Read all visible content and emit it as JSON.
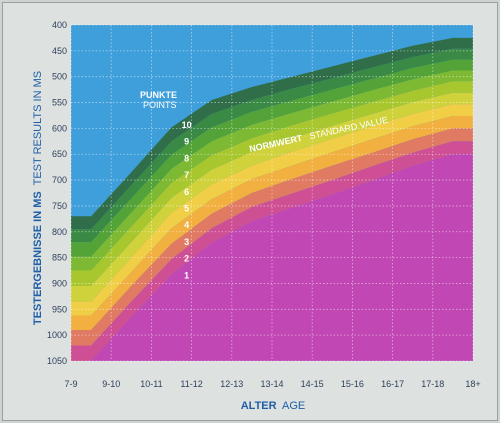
{
  "chart_data": {
    "type": "area",
    "x_categories": [
      "7-9",
      "9-10",
      "10-11",
      "11-12",
      "12-13",
      "13-14",
      "14-15",
      "15-16",
      "16-17",
      "17-18",
      "18+"
    ],
    "y_ticks": [
      400,
      450,
      500,
      550,
      600,
      650,
      700,
      750,
      800,
      850,
      900,
      950,
      1000,
      1050
    ],
    "ylim": [
      400,
      1050
    ],
    "y_inverted": true,
    "grid": true,
    "xlabel": {
      "bold": "ALTER",
      "light": "AGE"
    },
    "ylabel": {
      "bold": "TESTERGEBNISSE IN MS",
      "light": "TEST RESULTS IN MS"
    },
    "legend_header": {
      "line1": "PUNKTE",
      "line2": "POINTS"
    },
    "points_labels": [
      "10",
      "9",
      "8",
      "7",
      "6",
      "5",
      "4",
      "3",
      "2",
      "1"
    ],
    "standard_value": {
      "bold": "NORMWERT",
      "light": "STANDARD VALUE"
    },
    "band_boundaries_ms": [
      [
        770,
        685,
        598,
        545,
        520,
        500,
        480,
        460,
        440,
        425
      ],
      [
        795,
        710,
        625,
        572,
        545,
        523,
        503,
        482,
        462,
        446
      ],
      [
        820,
        735,
        651,
        598,
        568,
        546,
        525,
        504,
        483,
        467
      ],
      [
        848,
        763,
        678,
        625,
        593,
        570,
        548,
        526,
        505,
        488
      ],
      [
        875,
        790,
        705,
        652,
        619,
        594,
        571,
        549,
        527,
        509
      ],
      [
        905,
        820,
        734,
        680,
        645,
        619,
        595,
        572,
        549,
        531
      ],
      [
        935,
        850,
        763,
        708,
        672,
        645,
        620,
        596,
        572,
        553
      ],
      [
        962,
        878,
        793,
        737,
        698,
        672,
        646,
        621,
        596,
        576
      ],
      [
        990,
        905,
        823,
        765,
        725,
        698,
        672,
        647,
        621,
        600
      ],
      [
        1020,
        935,
        853,
        793,
        752,
        726,
        700,
        673,
        647,
        625
      ],
      [
        1050,
        965,
        883,
        822,
        780,
        754,
        728,
        701,
        673,
        650
      ]
    ],
    "band_colors": [
      "#2f6e48",
      "#3a8a46",
      "#54a338",
      "#7db932",
      "#a8c62e",
      "#cfd23a",
      "#f0ce45",
      "#f2b040",
      "#e17a63",
      "#cf4f95",
      "#c047b4"
    ],
    "sky_color": "#3f9fdb"
  }
}
